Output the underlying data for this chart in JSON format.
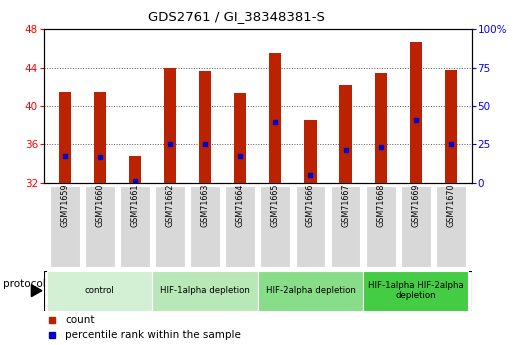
{
  "title": "GDS2761 / GI_38348381-S",
  "samples": [
    "GSM71659",
    "GSM71660",
    "GSM71661",
    "GSM71662",
    "GSM71663",
    "GSM71664",
    "GSM71665",
    "GSM71666",
    "GSM71667",
    "GSM71668",
    "GSM71669",
    "GSM71670"
  ],
  "bar_bottoms": [
    32,
    32,
    32,
    32,
    32,
    32,
    32,
    32,
    32,
    32,
    32,
    32
  ],
  "bar_tops": [
    41.5,
    41.5,
    34.8,
    44.0,
    43.7,
    41.4,
    45.5,
    38.5,
    42.2,
    43.4,
    46.7,
    43.8
  ],
  "percentile_values": [
    34.8,
    34.7,
    32.2,
    36.1,
    36.0,
    34.8,
    38.3,
    32.8,
    35.4,
    35.7,
    38.5,
    36.0
  ],
  "ylim": [
    32,
    48
  ],
  "yticks_left": [
    32,
    36,
    40,
    44,
    48
  ],
  "yticks_right": [
    0,
    25,
    50,
    75,
    100
  ],
  "bar_color": "#bb2200",
  "percentile_color": "#0000cc",
  "grid_color": "#555555",
  "background_color": "#ffffff",
  "protocol_groups": [
    {
      "label": "control",
      "start": 0,
      "end": 3,
      "color": "#d4f0d4"
    },
    {
      "label": "HIF-1alpha depletion",
      "start": 3,
      "end": 6,
      "color": "#b8e8b8"
    },
    {
      "label": "HIF-2alpha depletion",
      "start": 6,
      "end": 9,
      "color": "#88dd88"
    },
    {
      "label": "HIF-1alpha HIF-2alpha\ndepletion",
      "start": 9,
      "end": 12,
      "color": "#44cc44"
    }
  ],
  "legend_count_label": "count",
  "legend_pct_label": "percentile rank within the sample",
  "protocol_label": "protocol"
}
